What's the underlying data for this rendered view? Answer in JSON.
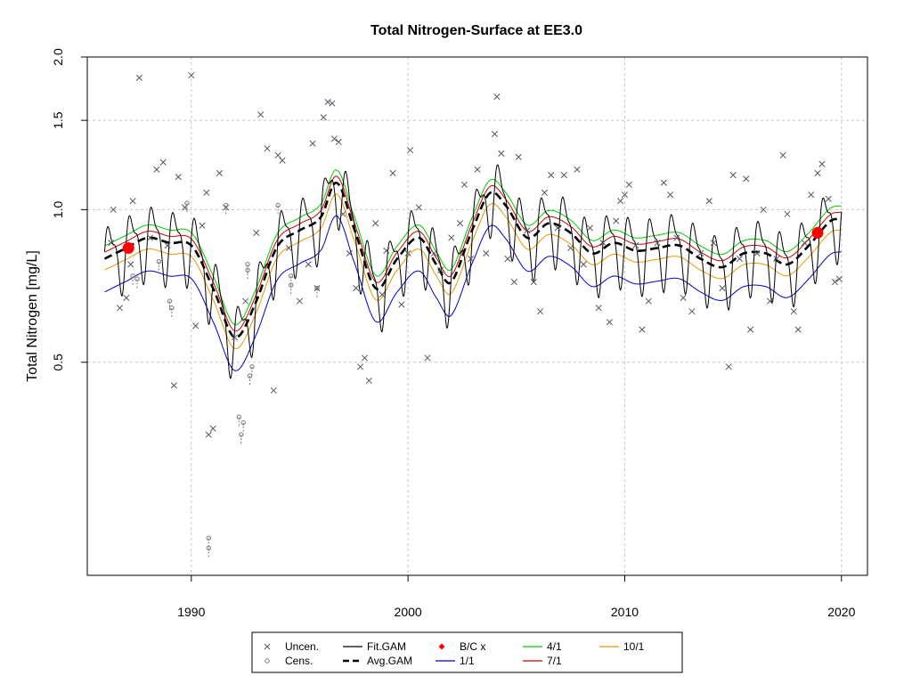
{
  "chart_data": {
    "type": "line",
    "title": "Total Nitrogen-Surface at EE3.0",
    "xlabel": "",
    "ylabel": "Total Nitrogen [mg/L]",
    "log_y": true,
    "xlim": [
      1985.2,
      2021.2
    ],
    "ylim": [
      0.19,
      2.0
    ],
    "x_ticks": [
      1990,
      2000,
      2010,
      2020
    ],
    "y_ticks": [
      0.5,
      1.0,
      1.5,
      2.0
    ],
    "y_tick_labels": [
      "0.5",
      "1.0",
      "1.5",
      "2.0"
    ],
    "grid": true,
    "colors": {
      "uncen": "#555566",
      "cens": "#777777",
      "fit": "#000000",
      "avg": "#000000",
      "bc": "#ff0000",
      "s1": "#0000cc",
      "s4": "#00cc00",
      "s7": "#cc0000",
      "s10": "#e69a00"
    },
    "trend_knots": [
      {
        "x": 1986.0,
        "y": 0.8
      },
      {
        "x": 1987.0,
        "y": 0.84
      },
      {
        "x": 1988.0,
        "y": 0.88
      },
      {
        "x": 1989.0,
        "y": 0.86
      },
      {
        "x": 1990.0,
        "y": 0.85
      },
      {
        "x": 1991.0,
        "y": 0.7
      },
      {
        "x": 1992.0,
        "y": 0.56
      },
      {
        "x": 1993.0,
        "y": 0.66
      },
      {
        "x": 1994.0,
        "y": 0.85
      },
      {
        "x": 1995.0,
        "y": 0.91
      },
      {
        "x": 1996.0,
        "y": 0.97
      },
      {
        "x": 1996.7,
        "y": 1.13
      },
      {
        "x": 1997.5,
        "y": 0.92
      },
      {
        "x": 1998.5,
        "y": 0.7
      },
      {
        "x": 1999.5,
        "y": 0.8
      },
      {
        "x": 2000.5,
        "y": 0.88
      },
      {
        "x": 2001.3,
        "y": 0.78
      },
      {
        "x": 2002.0,
        "y": 0.72
      },
      {
        "x": 2003.0,
        "y": 0.92
      },
      {
        "x": 2003.8,
        "y": 1.08
      },
      {
        "x": 2004.5,
        "y": 1.02
      },
      {
        "x": 2005.5,
        "y": 0.88
      },
      {
        "x": 2006.5,
        "y": 0.94
      },
      {
        "x": 2007.5,
        "y": 0.9
      },
      {
        "x": 2008.5,
        "y": 0.82
      },
      {
        "x": 2009.5,
        "y": 0.86
      },
      {
        "x": 2010.5,
        "y": 0.83
      },
      {
        "x": 2011.5,
        "y": 0.84
      },
      {
        "x": 2012.5,
        "y": 0.85
      },
      {
        "x": 2013.5,
        "y": 0.8
      },
      {
        "x": 2014.5,
        "y": 0.77
      },
      {
        "x": 2015.5,
        "y": 0.82
      },
      {
        "x": 2016.5,
        "y": 0.82
      },
      {
        "x": 2017.5,
        "y": 0.78
      },
      {
        "x": 2018.5,
        "y": 0.85
      },
      {
        "x": 2019.5,
        "y": 0.95
      },
      {
        "x": 2020.0,
        "y": 0.96
      }
    ],
    "seasonal_factors": {
      "1/1": 0.86,
      "4/1": 1.06,
      "7/1": 1.03,
      "10/1": 0.95
    },
    "fit_amplitude": 0.15,
    "uncensored_points": [
      {
        "x": 1986.3,
        "y": 0.86
      },
      {
        "x": 1986.4,
        "y": 1.0
      },
      {
        "x": 1986.7,
        "y": 0.64
      },
      {
        "x": 1987.0,
        "y": 0.67
      },
      {
        "x": 1987.2,
        "y": 0.78
      },
      {
        "x": 1987.3,
        "y": 1.04
      },
      {
        "x": 1987.6,
        "y": 1.82
      },
      {
        "x": 1988.1,
        "y": 0.88
      },
      {
        "x": 1988.4,
        "y": 1.2
      },
      {
        "x": 1988.7,
        "y": 1.24
      },
      {
        "x": 1988.9,
        "y": 0.85
      },
      {
        "x": 1989.2,
        "y": 0.45
      },
      {
        "x": 1989.4,
        "y": 1.16
      },
      {
        "x": 1989.7,
        "y": 1.01
      },
      {
        "x": 1990.0,
        "y": 1.84
      },
      {
        "x": 1990.2,
        "y": 0.59
      },
      {
        "x": 1990.5,
        "y": 0.93
      },
      {
        "x": 1990.7,
        "y": 1.08
      },
      {
        "x": 1990.8,
        "y": 0.36
      },
      {
        "x": 1991.0,
        "y": 0.37
      },
      {
        "x": 1991.3,
        "y": 1.18
      },
      {
        "x": 1991.6,
        "y": 1.01
      },
      {
        "x": 1992.0,
        "y": 0.56
      },
      {
        "x": 1992.5,
        "y": 0.66
      },
      {
        "x": 1993.0,
        "y": 0.9
      },
      {
        "x": 1993.2,
        "y": 1.54
      },
      {
        "x": 1993.5,
        "y": 1.32
      },
      {
        "x": 1993.8,
        "y": 0.44
      },
      {
        "x": 1994.0,
        "y": 1.28
      },
      {
        "x": 1994.2,
        "y": 1.25
      },
      {
        "x": 1994.5,
        "y": 0.84
      },
      {
        "x": 1995.0,
        "y": 0.66
      },
      {
        "x": 1995.4,
        "y": 0.78
      },
      {
        "x": 1995.6,
        "y": 1.35
      },
      {
        "x": 1995.8,
        "y": 0.7
      },
      {
        "x": 1996.1,
        "y": 1.52
      },
      {
        "x": 1996.3,
        "y": 1.63
      },
      {
        "x": 1996.5,
        "y": 1.62
      },
      {
        "x": 1996.6,
        "y": 1.38
      },
      {
        "x": 1996.8,
        "y": 1.36
      },
      {
        "x": 1997.0,
        "y": 0.98
      },
      {
        "x": 1997.3,
        "y": 0.82
      },
      {
        "x": 1997.6,
        "y": 0.7
      },
      {
        "x": 1997.8,
        "y": 0.49
      },
      {
        "x": 1998.0,
        "y": 0.51
      },
      {
        "x": 1998.2,
        "y": 0.46
      },
      {
        "x": 1998.5,
        "y": 0.94
      },
      {
        "x": 1998.8,
        "y": 0.68
      },
      {
        "x": 1999.0,
        "y": 0.83
      },
      {
        "x": 1999.3,
        "y": 1.18
      },
      {
        "x": 1999.7,
        "y": 0.65
      },
      {
        "x": 2000.0,
        "y": 0.82
      },
      {
        "x": 2000.1,
        "y": 1.31
      },
      {
        "x": 2000.5,
        "y": 1.01
      },
      {
        "x": 2000.9,
        "y": 0.51
      },
      {
        "x": 2001.2,
        "y": 0.82
      },
      {
        "x": 2001.5,
        "y": 0.76
      },
      {
        "x": 2002.0,
        "y": 0.88
      },
      {
        "x": 2002.4,
        "y": 0.94
      },
      {
        "x": 2002.6,
        "y": 1.12
      },
      {
        "x": 2002.9,
        "y": 0.8
      },
      {
        "x": 2003.2,
        "y": 1.2
      },
      {
        "x": 2003.6,
        "y": 0.82
      },
      {
        "x": 2004.0,
        "y": 1.41
      },
      {
        "x": 2004.1,
        "y": 1.67
      },
      {
        "x": 2004.3,
        "y": 1.29
      },
      {
        "x": 2004.6,
        "y": 0.8
      },
      {
        "x": 2004.9,
        "y": 0.72
      },
      {
        "x": 2005.1,
        "y": 1.27
      },
      {
        "x": 2005.5,
        "y": 0.91
      },
      {
        "x": 2005.8,
        "y": 0.72
      },
      {
        "x": 2006.1,
        "y": 0.63
      },
      {
        "x": 2006.3,
        "y": 1.08
      },
      {
        "x": 2006.6,
        "y": 1.17
      },
      {
        "x": 2006.9,
        "y": 0.92
      },
      {
        "x": 2007.2,
        "y": 1.17
      },
      {
        "x": 2007.5,
        "y": 0.84
      },
      {
        "x": 2007.8,
        "y": 1.2
      },
      {
        "x": 2008.1,
        "y": 0.78
      },
      {
        "x": 2008.4,
        "y": 0.92
      },
      {
        "x": 2008.8,
        "y": 0.64
      },
      {
        "x": 2009.0,
        "y": 0.86
      },
      {
        "x": 2009.3,
        "y": 0.6
      },
      {
        "x": 2009.6,
        "y": 0.95
      },
      {
        "x": 2009.8,
        "y": 1.04
      },
      {
        "x": 2010.0,
        "y": 1.07
      },
      {
        "x": 2010.2,
        "y": 1.12
      },
      {
        "x": 2010.5,
        "y": 0.85
      },
      {
        "x": 2010.8,
        "y": 0.58
      },
      {
        "x": 2011.1,
        "y": 0.66
      },
      {
        "x": 2011.5,
        "y": 0.86
      },
      {
        "x": 2011.8,
        "y": 1.13
      },
      {
        "x": 2012.1,
        "y": 1.07
      },
      {
        "x": 2012.4,
        "y": 0.88
      },
      {
        "x": 2012.7,
        "y": 0.67
      },
      {
        "x": 2013.1,
        "y": 0.63
      },
      {
        "x": 2013.5,
        "y": 0.82
      },
      {
        "x": 2013.9,
        "y": 1.04
      },
      {
        "x": 2014.1,
        "y": 0.86
      },
      {
        "x": 2014.5,
        "y": 0.7
      },
      {
        "x": 2014.8,
        "y": 0.49
      },
      {
        "x": 2015.0,
        "y": 1.17
      },
      {
        "x": 2015.3,
        "y": 0.8
      },
      {
        "x": 2015.6,
        "y": 1.15
      },
      {
        "x": 2015.8,
        "y": 0.58
      },
      {
        "x": 2016.1,
        "y": 0.82
      },
      {
        "x": 2016.4,
        "y": 1.0
      },
      {
        "x": 2016.7,
        "y": 0.66
      },
      {
        "x": 2017.0,
        "y": 0.8
      },
      {
        "x": 2017.3,
        "y": 1.28
      },
      {
        "x": 2017.5,
        "y": 0.98
      },
      {
        "x": 2017.8,
        "y": 0.63
      },
      {
        "x": 2018.0,
        "y": 0.58
      },
      {
        "x": 2018.3,
        "y": 0.86
      },
      {
        "x": 2018.6,
        "y": 1.07
      },
      {
        "x": 2018.9,
        "y": 1.18
      },
      {
        "x": 2019.1,
        "y": 1.23
      },
      {
        "x": 2019.4,
        "y": 1.05
      },
      {
        "x": 2019.7,
        "y": 0.72
      },
      {
        "x": 2019.9,
        "y": 0.73
      }
    ],
    "censored_points": [
      {
        "x": 1987.3,
        "y": 0.74
      },
      {
        "x": 1987.5,
        "y": 0.73
      },
      {
        "x": 1988.5,
        "y": 0.79
      },
      {
        "x": 1989.0,
        "y": 0.66
      },
      {
        "x": 1989.1,
        "y": 0.64
      },
      {
        "x": 1989.8,
        "y": 1.03
      },
      {
        "x": 1990.8,
        "y": 0.215
      },
      {
        "x": 1990.8,
        "y": 0.225
      },
      {
        "x": 1991.6,
        "y": 1.02
      },
      {
        "x": 1992.2,
        "y": 0.39
      },
      {
        "x": 1992.3,
        "y": 0.36
      },
      {
        "x": 1992.4,
        "y": 0.38
      },
      {
        "x": 1992.6,
        "y": 0.78
      },
      {
        "x": 1992.6,
        "y": 0.76
      },
      {
        "x": 1992.7,
        "y": 0.47
      },
      {
        "x": 1992.8,
        "y": 0.49
      },
      {
        "x": 1994.0,
        "y": 1.02
      },
      {
        "x": 1995.8,
        "y": 0.7
      },
      {
        "x": 1994.6,
        "y": 0.74
      },
      {
        "x": 1994.6,
        "y": 0.71
      }
    ],
    "bc_points": [
      {
        "x": 1987.1,
        "y": 0.84
      },
      {
        "x": 2018.9,
        "y": 0.9
      }
    ],
    "legend": {
      "items": [
        {
          "key": "uncen",
          "label": "Uncen."
        },
        {
          "key": "fit",
          "label": "Fit.GAM"
        },
        {
          "key": "bc",
          "label": "B/C x"
        },
        {
          "key": "s4",
          "label": "4/1"
        },
        {
          "key": "s10",
          "label": "10/1"
        },
        {
          "key": "cens",
          "label": "Cens."
        },
        {
          "key": "avg",
          "label": "Avg.GAM"
        },
        {
          "key": "s1",
          "label": "1/1"
        },
        {
          "key": "s7",
          "label": "7/1"
        }
      ]
    }
  }
}
